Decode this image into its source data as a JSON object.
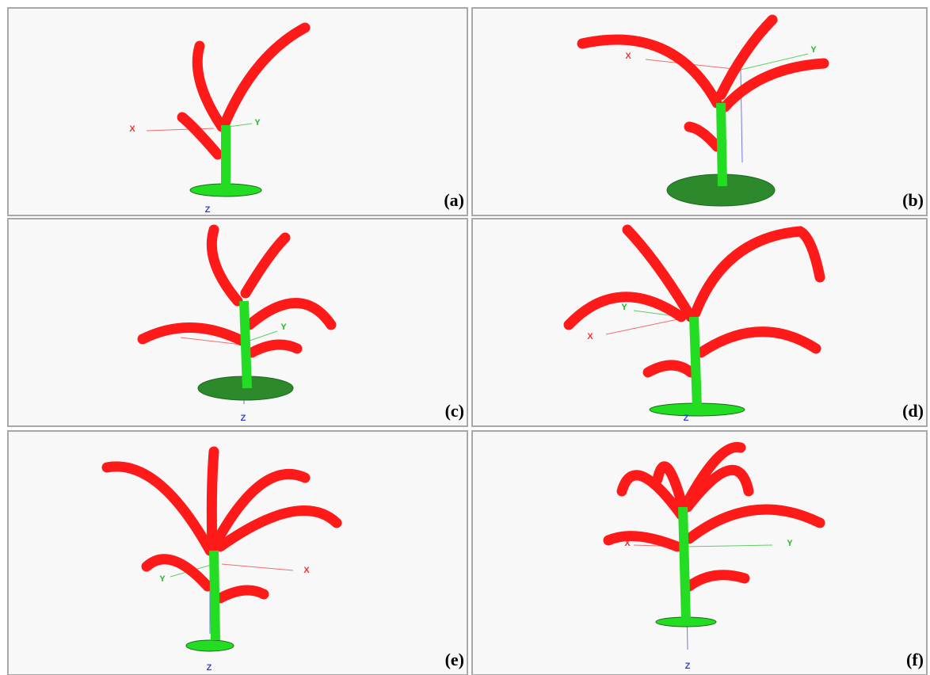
{
  "panels": [
    {
      "label": "(a)",
      "axes": [
        "X",
        "Y",
        "Z"
      ]
    },
    {
      "label": "(b)",
      "axes": [
        "X",
        "Y"
      ]
    },
    {
      "label": "(c)",
      "axes": [
        "Y",
        "Z"
      ]
    },
    {
      "label": "(d)",
      "axes": [
        "X",
        "Y",
        "Z"
      ]
    },
    {
      "label": "(e)",
      "axes": [
        "X",
        "Y",
        "Z"
      ]
    },
    {
      "label": "(f)",
      "axes": [
        "X",
        "Y",
        "Z"
      ]
    }
  ]
}
